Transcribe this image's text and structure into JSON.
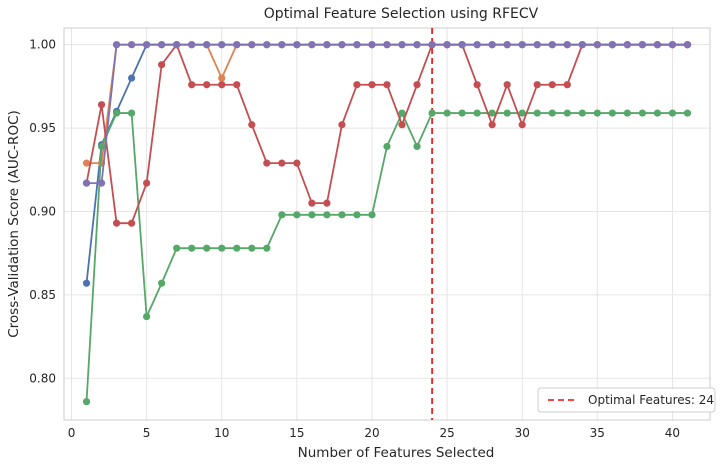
{
  "chart_data": {
    "type": "line",
    "title": "Optimal Feature Selection using RFECV",
    "xlabel": "Number of Features Selected",
    "ylabel": "Cross-Validation Score (AUC-ROC)",
    "xlim": [
      -0.5,
      42.5
    ],
    "ylim": [
      0.775,
      1.01
    ],
    "xticks": [
      0,
      5,
      10,
      15,
      20,
      25,
      30,
      35,
      40
    ],
    "yticks": [
      0.8,
      0.85,
      0.9,
      0.95,
      1.0
    ],
    "ytick_labels": [
      "0.80",
      "0.85",
      "0.90",
      "0.95",
      "1.00"
    ],
    "grid": true,
    "legend_position": "lower right",
    "optimal_line": {
      "x": 24,
      "label": "Optimal Features: 24",
      "color": "#ff0000"
    },
    "series": [
      {
        "color": "#4c72b0",
        "x": [
          1,
          2,
          3,
          4,
          5,
          6,
          7,
          8,
          9,
          10,
          11,
          12,
          13,
          14,
          15,
          16,
          17,
          18,
          19,
          20,
          21,
          22,
          23,
          24,
          25,
          26,
          27,
          28,
          29,
          30,
          31,
          32,
          33,
          34,
          35,
          36,
          37,
          38,
          39,
          40,
          41
        ],
        "values": [
          0.857,
          0.94,
          0.96,
          0.98,
          1.0,
          1.0,
          1.0,
          1.0,
          1.0,
          1.0,
          1.0,
          1.0,
          1.0,
          1.0,
          1.0,
          1.0,
          1.0,
          1.0,
          1.0,
          1.0,
          1.0,
          1.0,
          1.0,
          1.0,
          1.0,
          1.0,
          1.0,
          1.0,
          1.0,
          1.0,
          1.0,
          1.0,
          1.0,
          1.0,
          1.0,
          1.0,
          1.0,
          1.0,
          1.0,
          1.0,
          1.0
        ]
      },
      {
        "color": "#dd8452",
        "x": [
          1,
          2,
          3,
          4,
          5,
          6,
          7,
          8,
          9,
          10,
          11,
          12,
          13,
          14,
          15,
          16,
          17,
          18,
          19,
          20,
          21,
          22,
          23,
          24,
          25,
          26,
          27,
          28,
          29,
          30,
          31,
          32,
          33,
          34,
          35,
          36,
          37,
          38,
          39,
          40,
          41
        ],
        "values": [
          0.929,
          0.929,
          1.0,
          1.0,
          1.0,
          1.0,
          1.0,
          1.0,
          1.0,
          0.98,
          1.0,
          1.0,
          1.0,
          1.0,
          1.0,
          1.0,
          1.0,
          1.0,
          1.0,
          1.0,
          1.0,
          1.0,
          1.0,
          1.0,
          1.0,
          1.0,
          1.0,
          1.0,
          1.0,
          1.0,
          1.0,
          1.0,
          1.0,
          1.0,
          1.0,
          1.0,
          1.0,
          1.0,
          1.0,
          1.0,
          1.0
        ]
      },
      {
        "color": "#55a868",
        "x": [
          1,
          2,
          3,
          4,
          5,
          6,
          7,
          8,
          9,
          10,
          11,
          12,
          13,
          14,
          15,
          16,
          17,
          18,
          19,
          20,
          21,
          22,
          23,
          24,
          25,
          26,
          27,
          28,
          29,
          30,
          31,
          32,
          33,
          34,
          35,
          36,
          37,
          38,
          39,
          40,
          41
        ],
        "values": [
          0.786,
          0.939,
          0.959,
          0.959,
          0.837,
          0.857,
          0.878,
          0.878,
          0.878,
          0.878,
          0.878,
          0.878,
          0.878,
          0.898,
          0.898,
          0.898,
          0.898,
          0.898,
          0.898,
          0.898,
          0.939,
          0.959,
          0.939,
          0.959,
          0.959,
          0.959,
          0.959,
          0.959,
          0.959,
          0.959,
          0.959,
          0.959,
          0.959,
          0.959,
          0.959,
          0.959,
          0.959,
          0.959,
          0.959,
          0.959,
          0.959
        ]
      },
      {
        "color": "#c44e52",
        "x": [
          1,
          2,
          3,
          4,
          5,
          6,
          7,
          8,
          9,
          10,
          11,
          12,
          13,
          14,
          15,
          16,
          17,
          18,
          19,
          20,
          21,
          22,
          23,
          24,
          25,
          26,
          27,
          28,
          29,
          30,
          31,
          32,
          33,
          34,
          35,
          36,
          37,
          38,
          39,
          40,
          41
        ],
        "values": [
          0.917,
          0.964,
          0.893,
          0.893,
          0.917,
          0.988,
          1.0,
          0.976,
          0.976,
          0.976,
          0.976,
          0.952,
          0.929,
          0.929,
          0.929,
          0.905,
          0.905,
          0.952,
          0.976,
          0.976,
          0.976,
          0.952,
          0.976,
          1.0,
          1.0,
          1.0,
          0.976,
          0.952,
          0.976,
          0.952,
          0.976,
          0.976,
          0.976,
          1.0,
          1.0,
          1.0,
          1.0,
          1.0,
          1.0,
          1.0,
          1.0
        ]
      },
      {
        "color": "#8172b3",
        "x": [
          1,
          2,
          3,
          4,
          5,
          6,
          7,
          8,
          9,
          10,
          11,
          12,
          13,
          14,
          15,
          16,
          17,
          18,
          19,
          20,
          21,
          22,
          23,
          24,
          25,
          26,
          27,
          28,
          29,
          30,
          31,
          32,
          33,
          34,
          35,
          36,
          37,
          38,
          39,
          40,
          41
        ],
        "values": [
          0.917,
          0.917,
          1.0,
          1.0,
          1.0,
          1.0,
          1.0,
          1.0,
          1.0,
          1.0,
          1.0,
          1.0,
          1.0,
          1.0,
          1.0,
          1.0,
          1.0,
          1.0,
          1.0,
          1.0,
          1.0,
          1.0,
          1.0,
          1.0,
          1.0,
          1.0,
          1.0,
          1.0,
          1.0,
          1.0,
          1.0,
          1.0,
          1.0,
          1.0,
          1.0,
          1.0,
          1.0,
          1.0,
          1.0,
          1.0,
          1.0
        ]
      }
    ]
  }
}
